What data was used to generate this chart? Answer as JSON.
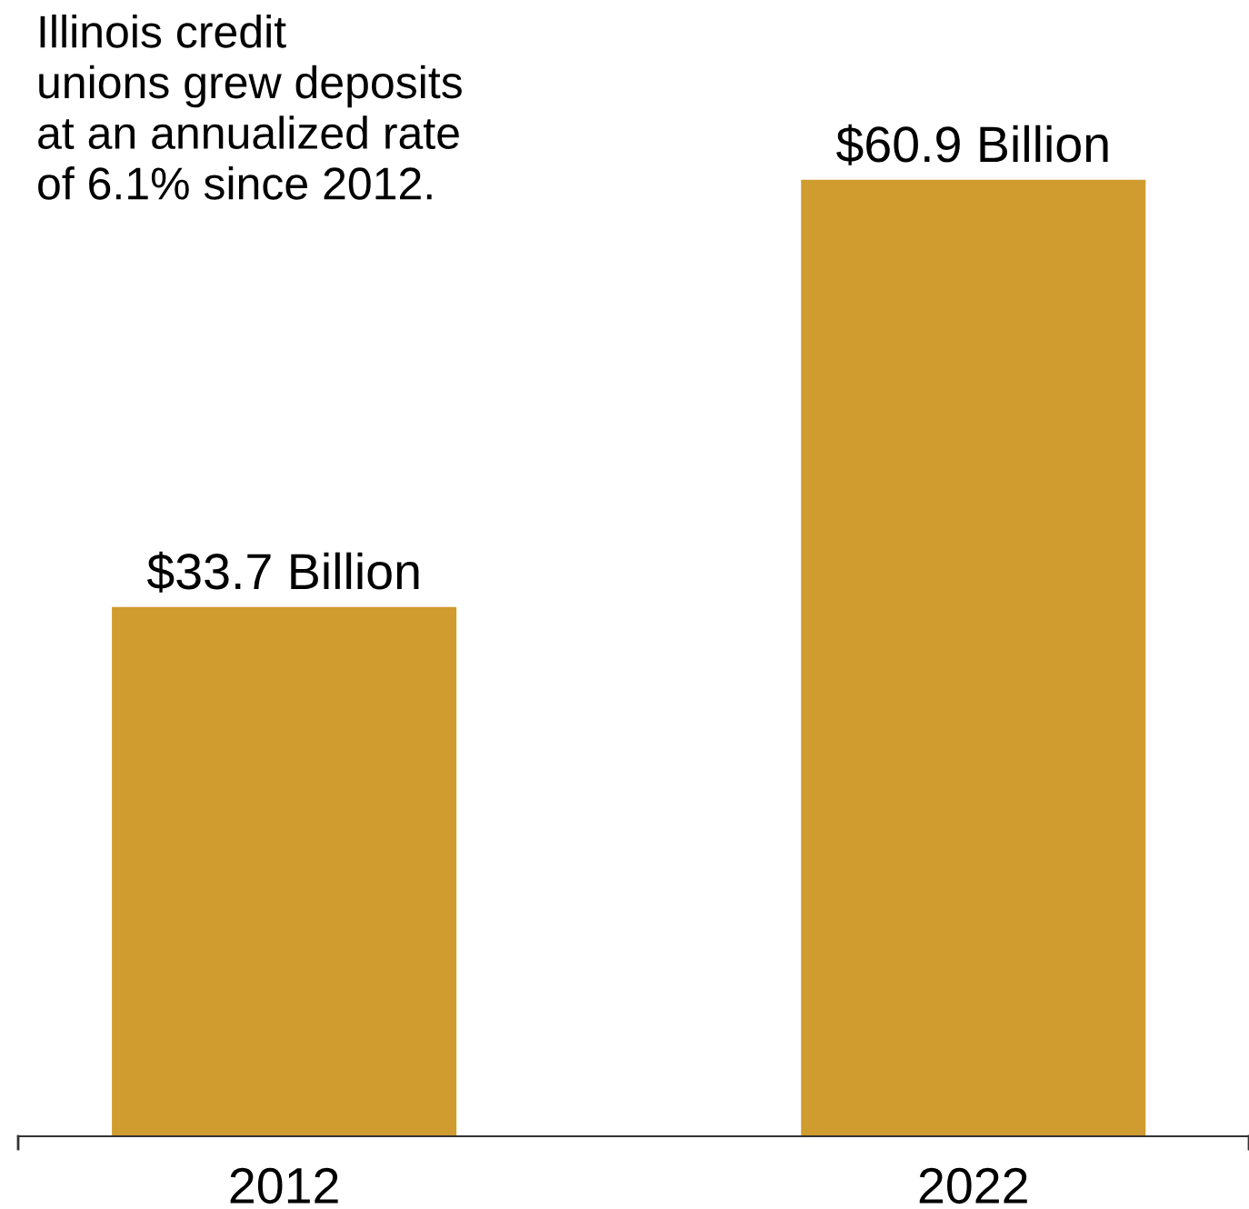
{
  "chart_data": {
    "type": "bar",
    "categories": [
      "2012",
      "2022"
    ],
    "values": [
      33.7,
      60.9
    ],
    "color": "#d09b2f",
    "value_labels": [
      "$33.7 Billion",
      "$60.9 Billion"
    ],
    "annotations": [
      "Illinois credit\nunions grew deposits\nat an annualized rate\nof 6.1% since 2012."
    ],
    "grid": false,
    "legend": false
  }
}
